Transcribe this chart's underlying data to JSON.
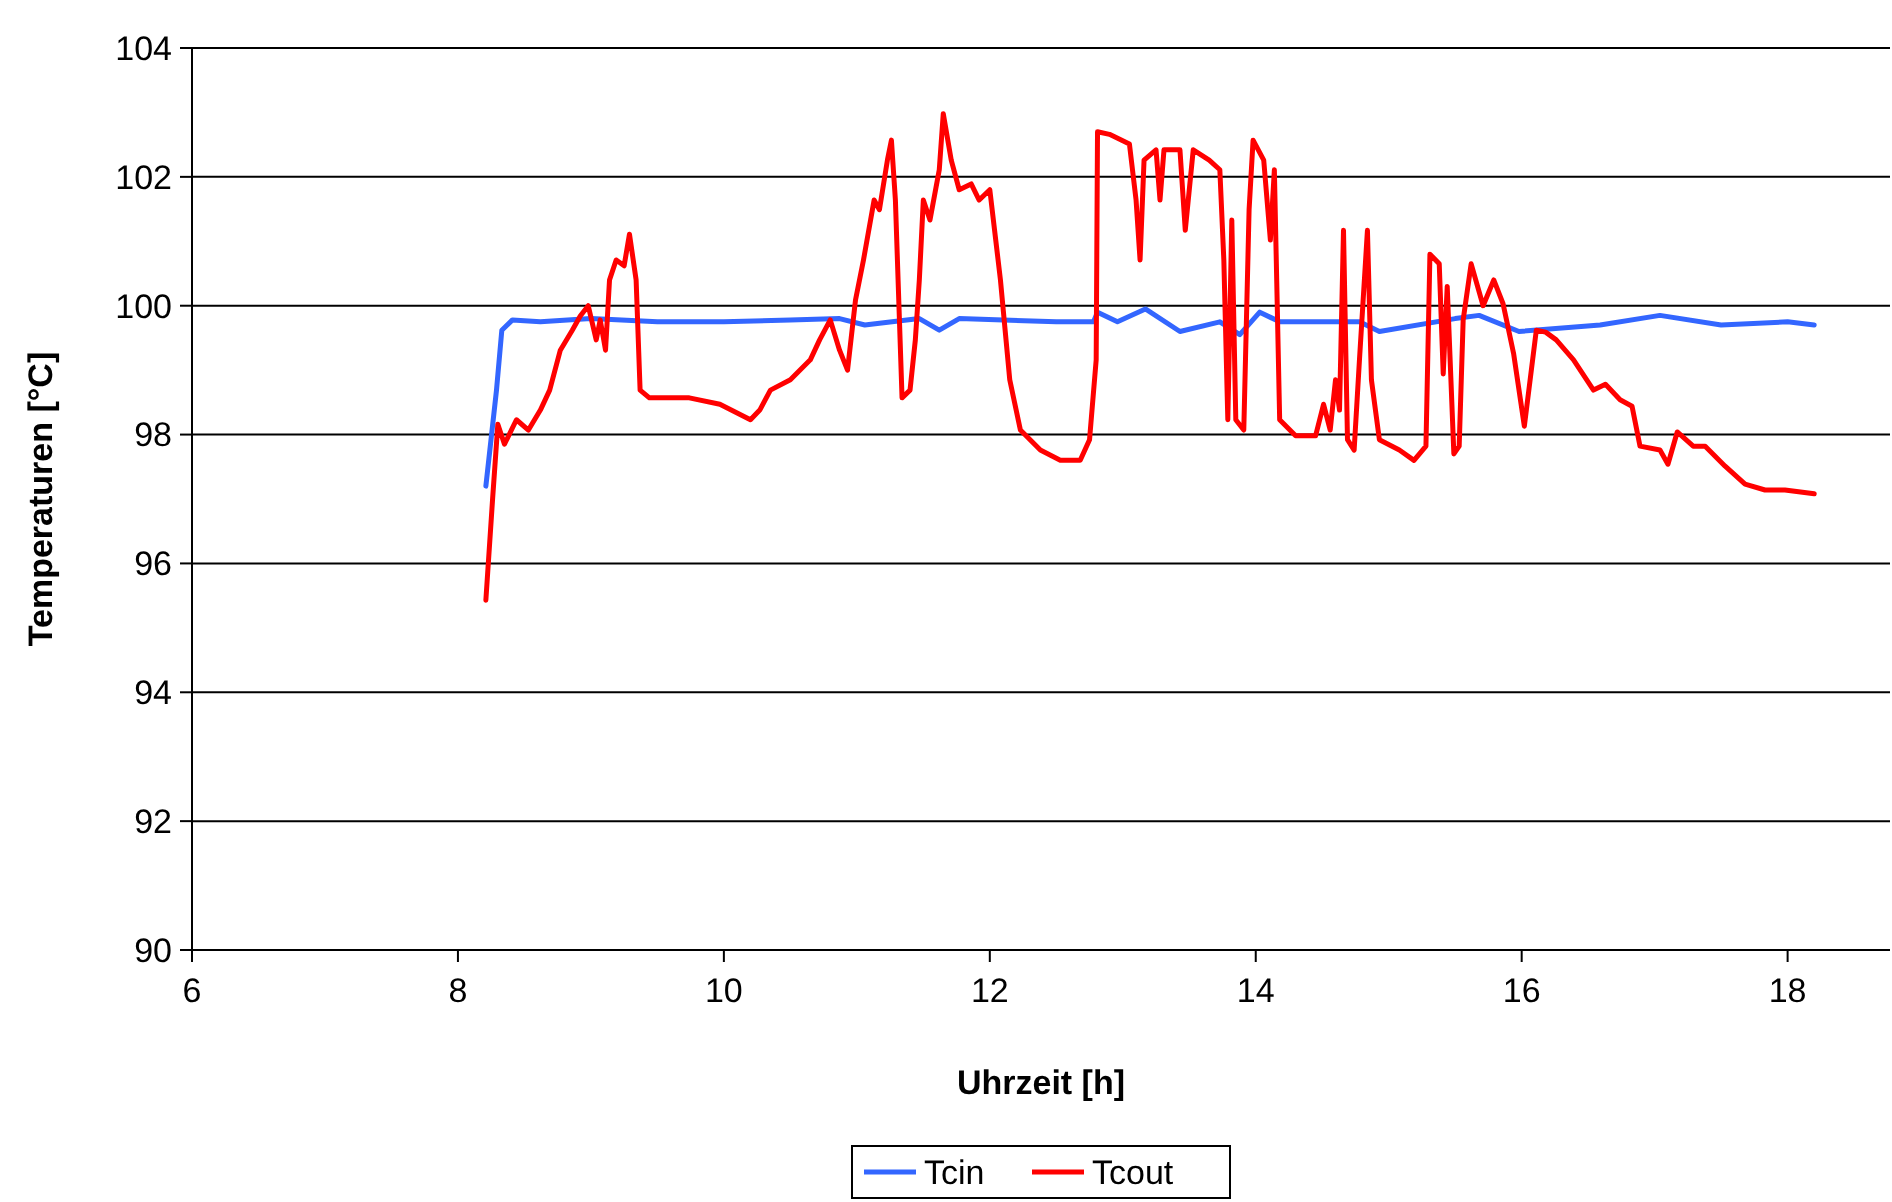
{
  "chart_data": {
    "type": "line",
    "xlabel": "Uhrzeit [h]",
    "ylabel": "Temperaturen [°C]",
    "xlim": [
      6,
      18.77
    ],
    "xticks": [
      6,
      8,
      10,
      12,
      14,
      16,
      18
    ],
    "ylim": [
      90,
      104
    ],
    "yticks": [
      90,
      92,
      94,
      96,
      98,
      100,
      102,
      104
    ],
    "grid": "y",
    "legend": "bottom",
    "marker": "none",
    "line_style": "solid",
    "series": [
      {
        "name": "Tcin",
        "color": "#3366ff",
        "x": [
          8.21,
          8.29,
          8.33,
          8.41,
          8.62,
          9.0,
          9.5,
          10.0,
          10.5,
          10.87,
          11.06,
          11.47,
          11.62,
          11.77,
          12.5,
          12.78,
          12.81,
          12.96,
          13.17,
          13.43,
          13.73,
          13.88,
          14.03,
          14.18,
          14.78,
          14.93,
          15.5,
          15.68,
          15.98,
          16.59,
          17.04,
          17.5,
          18.0,
          18.2
        ],
        "values": [
          97.2,
          98.69,
          99.62,
          99.78,
          99.75,
          99.8,
          99.75,
          99.75,
          99.78,
          99.8,
          99.7,
          99.8,
          99.62,
          99.8,
          99.75,
          99.75,
          99.9,
          99.75,
          99.95,
          99.6,
          99.75,
          99.55,
          99.9,
          99.75,
          99.75,
          99.6,
          99.8,
          99.85,
          99.6,
          99.7,
          99.85,
          99.7,
          99.75,
          99.7
        ]
      },
      {
        "name": "Tcout",
        "color": "#ff0000",
        "x": [
          8.21,
          8.26,
          8.3,
          8.35,
          8.44,
          8.53,
          8.62,
          8.69,
          8.77,
          8.86,
          8.92,
          8.98,
          9.04,
          9.07,
          9.11,
          9.14,
          9.19,
          9.25,
          9.29,
          9.34,
          9.37,
          9.44,
          9.74,
          9.97,
          10.2,
          10.27,
          10.35,
          10.5,
          10.65,
          10.72,
          10.8,
          10.87,
          10.93,
          10.99,
          11.05,
          11.13,
          11.17,
          11.23,
          11.26,
          11.29,
          11.34,
          11.4,
          11.44,
          11.47,
          11.5,
          11.55,
          11.62,
          11.65,
          11.71,
          11.77,
          11.86,
          11.92,
          12.0,
          12.08,
          12.15,
          12.23,
          12.38,
          12.53,
          12.68,
          12.75,
          12.8,
          12.81,
          12.9,
          13.05,
          13.1,
          13.13,
          13.16,
          13.25,
          13.28,
          13.31,
          13.43,
          13.47,
          13.53,
          13.65,
          13.73,
          13.76,
          13.79,
          13.82,
          13.85,
          13.91,
          13.95,
          13.98,
          14.06,
          14.11,
          14.14,
          14.18,
          14.3,
          14.45,
          14.51,
          14.56,
          14.6,
          14.63,
          14.66,
          14.69,
          14.74,
          14.78,
          14.84,
          14.87,
          14.93,
          15.08,
          15.19,
          15.28,
          15.31,
          15.38,
          15.41,
          15.44,
          15.49,
          15.53,
          15.56,
          15.62,
          15.71,
          15.79,
          15.86,
          15.94,
          16.02,
          16.11,
          16.18,
          16.26,
          16.39,
          16.54,
          16.63,
          16.74,
          16.83,
          16.89,
          17.04,
          17.1,
          17.17,
          17.29,
          17.38,
          17.53,
          17.68,
          17.83,
          17.98,
          18.2
        ],
        "values": [
          95.43,
          96.98,
          98.16,
          97.85,
          98.23,
          98.07,
          98.38,
          98.69,
          99.31,
          99.62,
          99.84,
          100.0,
          99.47,
          99.78,
          99.31,
          100.4,
          100.71,
          100.62,
          101.11,
          100.4,
          98.69,
          98.57,
          98.57,
          98.47,
          98.23,
          98.38,
          98.69,
          98.85,
          99.16,
          99.47,
          99.78,
          99.31,
          99.0,
          100.09,
          100.71,
          101.64,
          101.49,
          102.26,
          102.57,
          101.64,
          98.57,
          98.69,
          99.47,
          100.4,
          101.64,
          101.33,
          102.11,
          102.98,
          102.26,
          101.8,
          101.89,
          101.64,
          101.8,
          100.4,
          98.85,
          98.07,
          97.76,
          97.6,
          97.6,
          97.92,
          99.16,
          102.7,
          102.66,
          102.51,
          101.64,
          100.71,
          102.26,
          102.42,
          101.64,
          102.42,
          102.42,
          101.17,
          102.42,
          102.26,
          102.11,
          100.71,
          98.23,
          101.33,
          98.23,
          98.07,
          101.49,
          102.57,
          102.26,
          101.02,
          102.11,
          98.23,
          97.98,
          97.98,
          98.47,
          98.07,
          98.85,
          98.38,
          101.17,
          97.92,
          97.76,
          99.16,
          101.17,
          98.85,
          97.92,
          97.76,
          97.6,
          97.82,
          100.8,
          100.65,
          98.94,
          100.3,
          97.7,
          97.82,
          99.78,
          100.65,
          100.0,
          100.4,
          100.03,
          99.25,
          98.13,
          99.62,
          99.59,
          99.47,
          99.16,
          98.69,
          98.78,
          98.54,
          98.44,
          97.82,
          97.76,
          97.54,
          98.04,
          97.82,
          97.82,
          97.51,
          97.23,
          97.14,
          97.14,
          97.08
        ]
      }
    ]
  }
}
